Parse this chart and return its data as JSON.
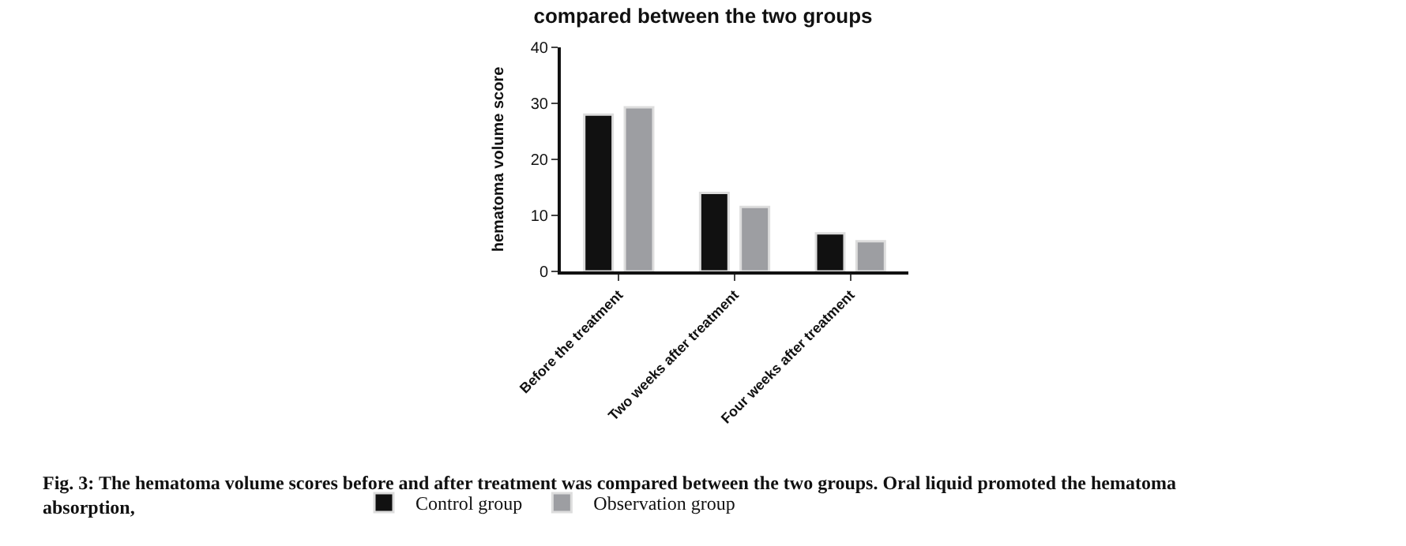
{
  "chart_data": {
    "type": "bar",
    "title": "compared between the two groups",
    "ylabel": "hematoma volume score",
    "categories": [
      "Before the treatment",
      "Two weeks after treatment",
      "Four weeks after treatment"
    ],
    "series": [
      {
        "name": "Control group",
        "color": "#111111",
        "values": [
          28,
          14,
          6.8
        ]
      },
      {
        "name": "Observation group",
        "color": "#9d9ea2",
        "values": [
          29.3,
          11.5,
          5.4
        ]
      }
    ],
    "ylim": [
      0,
      40
    ],
    "yticks": [
      0,
      10,
      20,
      30,
      40
    ],
    "legend": "bottom",
    "annotations": [
      "Fig. 3: The hematoma volume scores before and after treatment was compared between the two groups. Oral liquid promoted the hematoma absorption,"
    ]
  }
}
